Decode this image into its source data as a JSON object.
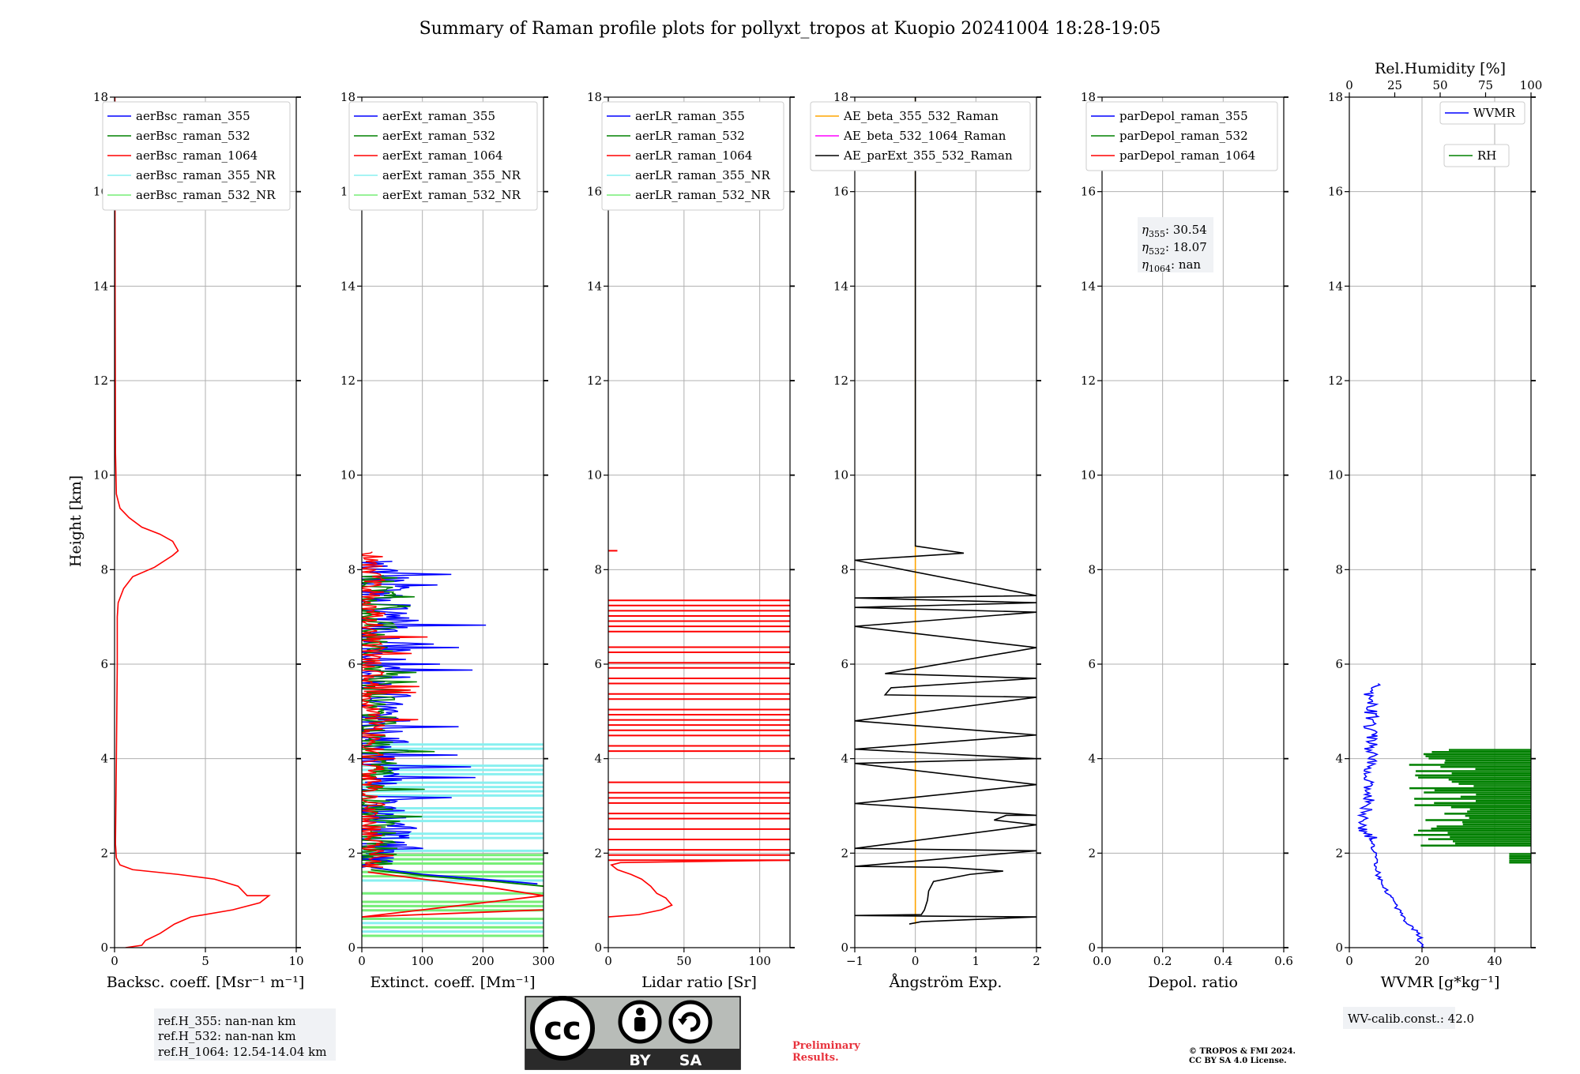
{
  "figure": {
    "title": "Summary of Raman profile plots for pollyxt_tropos at Kuopio 20241004 18:28-19:05",
    "ylabel": "Height [km]",
    "ref_info": [
      "ref.H_355: nan-nan km",
      "ref.H_532: nan-nan km",
      "ref.H_1064: 12.54-14.04 km"
    ],
    "eta_info": [
      {
        "sym": "η",
        "sub": "355",
        "val": ": 30.54"
      },
      {
        "sym": "η",
        "sub": "532",
        "val": ": 18.07"
      },
      {
        "sym": "η",
        "sub": "1064",
        "val": ": nan"
      }
    ],
    "wv_calib": "WV-calib.const.: 42.0",
    "preliminary": [
      "Preliminary",
      "Results."
    ],
    "copyright": [
      "© TROPOS & FMI 2024.",
      "CC BY SA 4.0 License."
    ],
    "cc_badge": {
      "cc": "cc",
      "by": "BY",
      "sa": "SA"
    },
    "colors": {
      "blue": "#0000ff",
      "green": "#008000",
      "red": "#ff0000",
      "cyan": "#88f0f0",
      "lightgreen": "#77ee77",
      "orange": "#ffa500",
      "magenta": "#ff00ff",
      "black": "#000000"
    }
  },
  "chart_data": [
    {
      "type": "line",
      "id": "bsc",
      "xlabel": "Backsc. coeff. [Msr⁻¹ m⁻¹]",
      "xlim": [
        0,
        10
      ],
      "xticks": [
        0,
        5,
        10
      ],
      "ylim": [
        0,
        18
      ],
      "yticks": [
        0,
        2,
        4,
        6,
        8,
        10,
        12,
        14,
        16,
        18
      ],
      "grid": true,
      "legend_loc": "upper-right",
      "legend": [
        {
          "name": "aerBsc_raman_355",
          "color": "#0000ff"
        },
        {
          "name": "aerBsc_raman_532",
          "color": "#008000"
        },
        {
          "name": "aerBsc_raman_1064",
          "color": "#ff0000"
        },
        {
          "name": "aerBsc_raman_355_NR",
          "color": "#88f0f0"
        },
        {
          "name": "aerBsc_raman_532_NR",
          "color": "#77ee77"
        }
      ],
      "series": [
        {
          "name": "aerBsc_raman_1064",
          "color": "#ff0000",
          "points": [
            [
              0.6,
              0.0
            ],
            [
              1.5,
              0.05
            ],
            [
              1.7,
              0.15
            ],
            [
              2.5,
              0.3
            ],
            [
              3.3,
              0.5
            ],
            [
              4.2,
              0.65
            ],
            [
              6.5,
              0.8
            ],
            [
              8.0,
              0.95
            ],
            [
              8.5,
              1.1
            ],
            [
              7.3,
              1.1
            ],
            [
              6.8,
              1.3
            ],
            [
              5.5,
              1.45
            ],
            [
              3.5,
              1.55
            ],
            [
              1.0,
              1.65
            ],
            [
              0.3,
              1.75
            ],
            [
              0.1,
              1.9
            ],
            [
              0.05,
              2.2
            ],
            [
              0.1,
              4.0
            ],
            [
              0.15,
              6.0
            ],
            [
              0.15,
              7.0
            ],
            [
              0.2,
              7.3
            ],
            [
              0.5,
              7.6
            ],
            [
              1.0,
              7.85
            ],
            [
              2.2,
              8.05
            ],
            [
              3.2,
              8.3
            ],
            [
              3.5,
              8.4
            ],
            [
              3.2,
              8.6
            ],
            [
              2.5,
              8.75
            ],
            [
              1.5,
              8.9
            ],
            [
              0.8,
              9.1
            ],
            [
              0.3,
              9.3
            ],
            [
              0.1,
              9.6
            ],
            [
              0.05,
              10.5
            ],
            [
              0.03,
              14.0
            ],
            [
              0.02,
              18.0
            ]
          ]
        }
      ]
    },
    {
      "type": "line",
      "id": "ext",
      "xlabel": "Extinct. coeff. [Mm⁻¹]",
      "xlim": [
        0,
        300
      ],
      "xticks": [
        0,
        100,
        200,
        300
      ],
      "ylim": [
        0,
        18
      ],
      "yticks": [
        0,
        2,
        4,
        6,
        8,
        10,
        12,
        14,
        16,
        18
      ],
      "grid": true,
      "legend_loc": "upper-right",
      "legend": [
        {
          "name": "aerExt_raman_355",
          "color": "#0000ff"
        },
        {
          "name": "aerExt_raman_532",
          "color": "#008000"
        },
        {
          "name": "aerExt_raman_1064",
          "color": "#ff0000"
        },
        {
          "name": "aerExt_raman_355_NR",
          "color": "#88f0f0"
        },
        {
          "name": "aerExt_raman_532_NR",
          "color": "#77ee77"
        }
      ],
      "series": [
        {
          "name": "aerExt_raman_355_NR",
          "color": "#88f0f0",
          "style": "hlines",
          "ymin": 0.25,
          "ymax": 4.3,
          "step": 0.09,
          "xmax": 300
        },
        {
          "name": "aerExt_raman_532_NR",
          "color": "#77ee77",
          "style": "hlines",
          "ymin": 0.25,
          "ymax": 2.2,
          "step": 0.09,
          "xmax": 300
        },
        {
          "name": "aerExt_raman_355",
          "color": "#0000ff",
          "style": "noisy",
          "ymin": 1.7,
          "ymax": 8.2,
          "base": 25,
          "amp": 60,
          "seed": 3,
          "tail": [
            [
              15,
              1.7
            ],
            [
              100,
              1.55
            ],
            [
              200,
              1.45
            ],
            [
              290,
              1.35
            ]
          ]
        },
        {
          "name": "aerExt_raman_532",
          "color": "#008000",
          "style": "noisy",
          "ymin": 1.7,
          "ymax": 7.9,
          "base": 20,
          "amp": 40,
          "seed": 7,
          "tail": [
            [
              15,
              1.65
            ],
            [
              120,
              1.5
            ],
            [
              220,
              1.4
            ],
            [
              300,
              1.3
            ]
          ]
        },
        {
          "name": "aerExt_raman_1064",
          "color": "#ff0000",
          "style": "noisy",
          "ymin": 1.7,
          "ymax": 8.4,
          "base": 15,
          "amp": 25,
          "seed": 11,
          "tail": [
            [
              10,
              1.6
            ],
            [
              100,
              1.45
            ],
            [
              200,
              1.3
            ],
            [
              300,
              1.1
            ],
            [
              0,
              0.65
            ],
            [
              300,
              0.8
            ]
          ]
        }
      ]
    },
    {
      "type": "line",
      "id": "lr",
      "xlabel": "Lidar ratio [Sr]",
      "xlim": [
        0,
        120
      ],
      "xticks": [
        0,
        50,
        100
      ],
      "ylim": [
        0,
        18
      ],
      "yticks": [
        0,
        2,
        4,
        6,
        8,
        10,
        12,
        14,
        16,
        18
      ],
      "grid": true,
      "legend_loc": "upper-right",
      "legend": [
        {
          "name": "aerLR_raman_355",
          "color": "#0000ff"
        },
        {
          "name": "aerLR_raman_532",
          "color": "#008000"
        },
        {
          "name": "aerLR_raman_1064",
          "color": "#ff0000"
        },
        {
          "name": "aerLR_raman_355_NR",
          "color": "#88f0f0"
        },
        {
          "name": "aerLR_raman_532_NR",
          "color": "#77ee77"
        }
      ],
      "series": [
        {
          "name": "aerLR_raman_1064",
          "color": "#ff0000",
          "style": "hlines_red",
          "ymin": 1.85,
          "ymax": 7.4,
          "step": 0.11,
          "xmax": 120,
          "points": [
            [
              0,
              0.65
            ],
            [
              20,
              0.7
            ],
            [
              35,
              0.8
            ],
            [
              42,
              0.9
            ],
            [
              38,
              1.05
            ],
            [
              32,
              1.15
            ],
            [
              28,
              1.3
            ],
            [
              22,
              1.45
            ],
            [
              15,
              1.55
            ],
            [
              6,
              1.65
            ],
            [
              2,
              1.75
            ],
            [
              8,
              1.8
            ],
            [
              120,
              1.85
            ]
          ],
          "dot": [
            [
              0,
              8.4
            ],
            [
              6,
              8.4
            ]
          ]
        }
      ]
    },
    {
      "type": "line",
      "id": "ae",
      "xlabel": "Ångström Exp.",
      "xlim": [
        -1,
        2
      ],
      "xticks": [
        -1,
        0,
        1,
        2
      ],
      "xticklabels": [
        "−1",
        "0",
        "1",
        "2"
      ],
      "ylim": [
        0,
        18
      ],
      "yticks": [
        0,
        2,
        4,
        6,
        8,
        10,
        12,
        14,
        16,
        18
      ],
      "grid": true,
      "legend_loc": "upper-right",
      "legend": [
        {
          "name": "AE_beta_355_532_Raman",
          "color": "#ffa500"
        },
        {
          "name": "AE_beta_532_1064_Raman",
          "color": "#ff00ff"
        },
        {
          "name": "AE_parExt_355_532_Raman",
          "color": "#000000"
        }
      ],
      "series": [
        {
          "name": "AE_beta_355_532_Raman",
          "color": "#ffa500",
          "points": [
            [
              0,
              0.5
            ],
            [
              0,
              18
            ]
          ]
        },
        {
          "name": "AE_parExt_355_532_Raman",
          "color": "#000000",
          "points": [
            [
              -0.1,
              0.5
            ],
            [
              0.1,
              0.55
            ],
            [
              2.0,
              0.65
            ],
            [
              -1.0,
              0.68
            ],
            [
              0.1,
              0.7
            ],
            [
              0.15,
              0.8
            ],
            [
              0.2,
              1.0
            ],
            [
              0.22,
              1.2
            ],
            [
              0.3,
              1.4
            ],
            [
              0.9,
              1.55
            ],
            [
              1.45,
              1.62
            ],
            [
              0.5,
              1.7
            ],
            [
              -1.0,
              1.72
            ],
            [
              2.0,
              2.05
            ],
            [
              -1.0,
              2.1
            ],
            [
              2.0,
              2.6
            ],
            [
              1.3,
              2.7
            ],
            [
              1.5,
              2.8
            ],
            [
              2.0,
              2.8
            ],
            [
              -1.0,
              3.05
            ],
            [
              2.0,
              3.45
            ],
            [
              -1.0,
              3.9
            ],
            [
              2.0,
              4.0
            ],
            [
              -1.0,
              4.2
            ],
            [
              2.0,
              4.5
            ],
            [
              -1.0,
              4.8
            ],
            [
              2.0,
              5.3
            ],
            [
              -0.5,
              5.35
            ],
            [
              -0.4,
              5.5
            ],
            [
              2.0,
              5.7
            ],
            [
              -0.5,
              5.8
            ],
            [
              2.0,
              6.35
            ],
            [
              -1.0,
              6.8
            ],
            [
              2.0,
              7.1
            ],
            [
              -1.0,
              7.2
            ],
            [
              2.0,
              7.3
            ],
            [
              -1.0,
              7.4
            ],
            [
              2.0,
              7.45
            ],
            [
              -1.0,
              8.2
            ],
            [
              0.8,
              8.35
            ],
            [
              0.0,
              8.5
            ],
            [
              0.0,
              18.0
            ]
          ]
        }
      ]
    },
    {
      "type": "line",
      "id": "depol",
      "xlabel": "Depol. ratio",
      "xlim": [
        0,
        0.6
      ],
      "xticks": [
        0.0,
        0.2,
        0.4,
        0.6
      ],
      "xticklabels": [
        "0.0",
        "0.2",
        "0.4",
        "0.6"
      ],
      "ylim": [
        0,
        18
      ],
      "yticks": [
        0,
        2,
        4,
        6,
        8,
        10,
        12,
        14,
        16,
        18
      ],
      "grid": true,
      "legend_loc": "upper-right",
      "legend": [
        {
          "name": "parDepol_raman_355",
          "color": "#0000ff"
        },
        {
          "name": "parDepol_raman_532",
          "color": "#008000"
        },
        {
          "name": "parDepol_raman_1064",
          "color": "#ff0000"
        }
      ],
      "series": []
    },
    {
      "type": "line",
      "id": "wv",
      "xlabel": "WVMR [g*kg⁻¹]",
      "top_xlabel": "Rel.Humidity [%]",
      "xlim": [
        0,
        50
      ],
      "xticks": [
        0,
        20,
        40
      ],
      "top_xlim": [
        0,
        100
      ],
      "top_xticks": [
        0,
        25,
        50,
        75,
        100
      ],
      "ylim": [
        0,
        18
      ],
      "yticks": [
        0,
        2,
        4,
        6,
        8,
        10,
        12,
        14,
        16,
        18
      ],
      "grid": true,
      "legend_loc": "upper-right",
      "legend": [
        {
          "name": "WVMR",
          "color": "#0000ff"
        },
        {
          "name": "RH",
          "color": "#008000"
        }
      ],
      "series": [
        {
          "name": "WVMR",
          "color": "#0000ff",
          "style": "wvmr",
          "points": [
            [
              20,
              0.0
            ],
            [
              19,
              0.3
            ],
            [
              15,
              0.6
            ],
            [
              11,
              1.1
            ],
            [
              8,
              1.5
            ],
            [
              7,
              2.0
            ],
            [
              6,
              2.3
            ],
            [
              4,
              2.5
            ],
            [
              5,
              3.0
            ],
            [
              5,
              3.5
            ],
            [
              6,
              4.0
            ],
            [
              6,
              4.5
            ],
            [
              6,
              5.0
            ],
            [
              5,
              5.5
            ],
            [
              8,
              5.6
            ]
          ]
        },
        {
          "name": "RH",
          "color": "#008000",
          "style": "rh",
          "ymin": 1.8,
          "ymax": 4.2
        }
      ]
    }
  ]
}
